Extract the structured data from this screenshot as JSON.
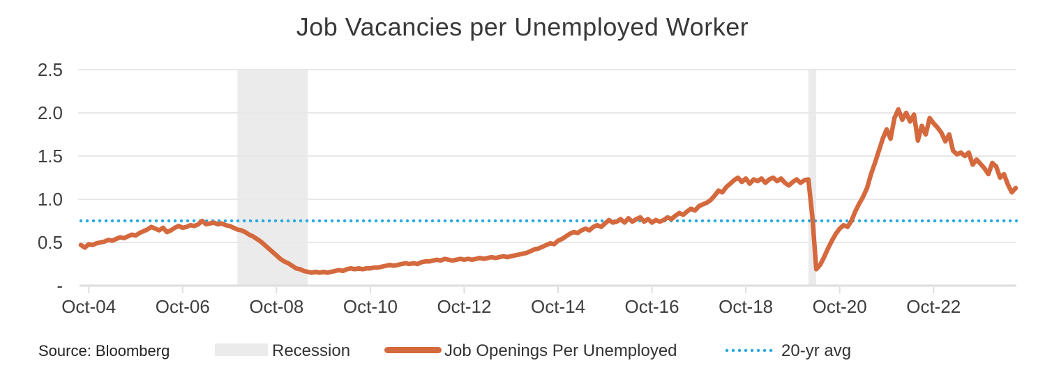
{
  "chart_data": {
    "type": "line",
    "title": "Job Vacancies per Unemployed Worker",
    "source": "Source: Bloomberg",
    "legend": [
      {
        "label": "Recession",
        "swatch": "band"
      },
      {
        "label": "Job Openings Per Unemployed",
        "swatch": "line"
      },
      {
        "label": "20-yr avg",
        "swatch": "dotted"
      }
    ],
    "colors": {
      "series": "#D5693E",
      "average": "#29A9E1",
      "recession_band": "#EBEBEB",
      "gridline": "#E8E8E8",
      "axis_line": "#DEDEDE",
      "text": "#3E3E3E"
    },
    "ylim": [
      0,
      2.5
    ],
    "grid": true,
    "legend_position": "bottom",
    "y_ticks": [
      {
        "label": "-",
        "value": 0
      },
      {
        "label": "0.5",
        "value": 0.5
      },
      {
        "label": "1.0",
        "value": 1.0
      },
      {
        "label": "1.5",
        "value": 1.5
      },
      {
        "label": "2.0",
        "value": 2.0
      },
      {
        "label": "2.5",
        "value": 2.5
      }
    ],
    "x_ticks": [
      {
        "label": "Oct-04",
        "date": "2004-10"
      },
      {
        "label": "Oct-06",
        "date": "2006-10"
      },
      {
        "label": "Oct-08",
        "date": "2008-10"
      },
      {
        "label": "Oct-10",
        "date": "2010-10"
      },
      {
        "label": "Oct-12",
        "date": "2012-10"
      },
      {
        "label": "Oct-14",
        "date": "2014-10"
      },
      {
        "label": "Oct-16",
        "date": "2016-10"
      },
      {
        "label": "Oct-18",
        "date": "2018-10"
      },
      {
        "label": "Oct-20",
        "date": "2020-10"
      },
      {
        "label": "Oct-22",
        "date": "2022-10"
      }
    ],
    "average_line": {
      "label": "20-yr avg",
      "value": 0.75
    },
    "recessions": [
      {
        "start": "2007-12",
        "end": "2009-06"
      },
      {
        "start": "2020-02",
        "end": "2020-04"
      }
    ],
    "series": [
      {
        "name": "Job Openings Per Unemployed",
        "start": "2004-08",
        "frequency": "monthly",
        "values": [
          0.47,
          0.44,
          0.48,
          0.47,
          0.49,
          0.5,
          0.51,
          0.53,
          0.52,
          0.54,
          0.56,
          0.55,
          0.57,
          0.59,
          0.58,
          0.61,
          0.63,
          0.65,
          0.68,
          0.66,
          0.64,
          0.67,
          0.62,
          0.64,
          0.67,
          0.69,
          0.67,
          0.68,
          0.7,
          0.69,
          0.71,
          0.75,
          0.71,
          0.72,
          0.73,
          0.71,
          0.72,
          0.7,
          0.69,
          0.67,
          0.65,
          0.64,
          0.62,
          0.59,
          0.57,
          0.54,
          0.51,
          0.47,
          0.43,
          0.39,
          0.35,
          0.31,
          0.28,
          0.26,
          0.23,
          0.2,
          0.19,
          0.17,
          0.16,
          0.15,
          0.16,
          0.15,
          0.16,
          0.15,
          0.16,
          0.17,
          0.18,
          0.17,
          0.19,
          0.2,
          0.19,
          0.2,
          0.19,
          0.2,
          0.2,
          0.21,
          0.21,
          0.22,
          0.23,
          0.24,
          0.23,
          0.24,
          0.25,
          0.26,
          0.25,
          0.26,
          0.25,
          0.27,
          0.28,
          0.28,
          0.29,
          0.3,
          0.29,
          0.31,
          0.3,
          0.29,
          0.3,
          0.31,
          0.3,
          0.31,
          0.3,
          0.31,
          0.32,
          0.31,
          0.32,
          0.33,
          0.32,
          0.33,
          0.34,
          0.33,
          0.34,
          0.35,
          0.36,
          0.37,
          0.38,
          0.4,
          0.42,
          0.43,
          0.45,
          0.47,
          0.49,
          0.48,
          0.52,
          0.54,
          0.57,
          0.6,
          0.62,
          0.61,
          0.64,
          0.66,
          0.64,
          0.68,
          0.7,
          0.68,
          0.72,
          0.76,
          0.73,
          0.74,
          0.77,
          0.73,
          0.78,
          0.74,
          0.77,
          0.79,
          0.74,
          0.77,
          0.73,
          0.76,
          0.74,
          0.76,
          0.79,
          0.77,
          0.81,
          0.84,
          0.82,
          0.86,
          0.89,
          0.87,
          0.92,
          0.94,
          0.96,
          0.99,
          1.04,
          1.1,
          1.08,
          1.14,
          1.18,
          1.22,
          1.25,
          1.2,
          1.24,
          1.18,
          1.23,
          1.21,
          1.24,
          1.19,
          1.23,
          1.25,
          1.21,
          1.24,
          1.19,
          1.16,
          1.2,
          1.23,
          1.19,
          1.22,
          1.23,
          0.8,
          0.19,
          0.24,
          0.33,
          0.43,
          0.52,
          0.6,
          0.66,
          0.7,
          0.68,
          0.75,
          0.86,
          0.95,
          1.03,
          1.13,
          1.29,
          1.42,
          1.56,
          1.7,
          1.81,
          1.7,
          1.94,
          2.04,
          1.92,
          2.0,
          1.9,
          1.98,
          1.68,
          1.85,
          1.75,
          1.94,
          1.88,
          1.83,
          1.77,
          1.67,
          1.75,
          1.56,
          1.52,
          1.54,
          1.5,
          1.54,
          1.4,
          1.46,
          1.41,
          1.36,
          1.29,
          1.42,
          1.38,
          1.25,
          1.29,
          1.17,
          1.08,
          1.13
        ]
      }
    ]
  }
}
